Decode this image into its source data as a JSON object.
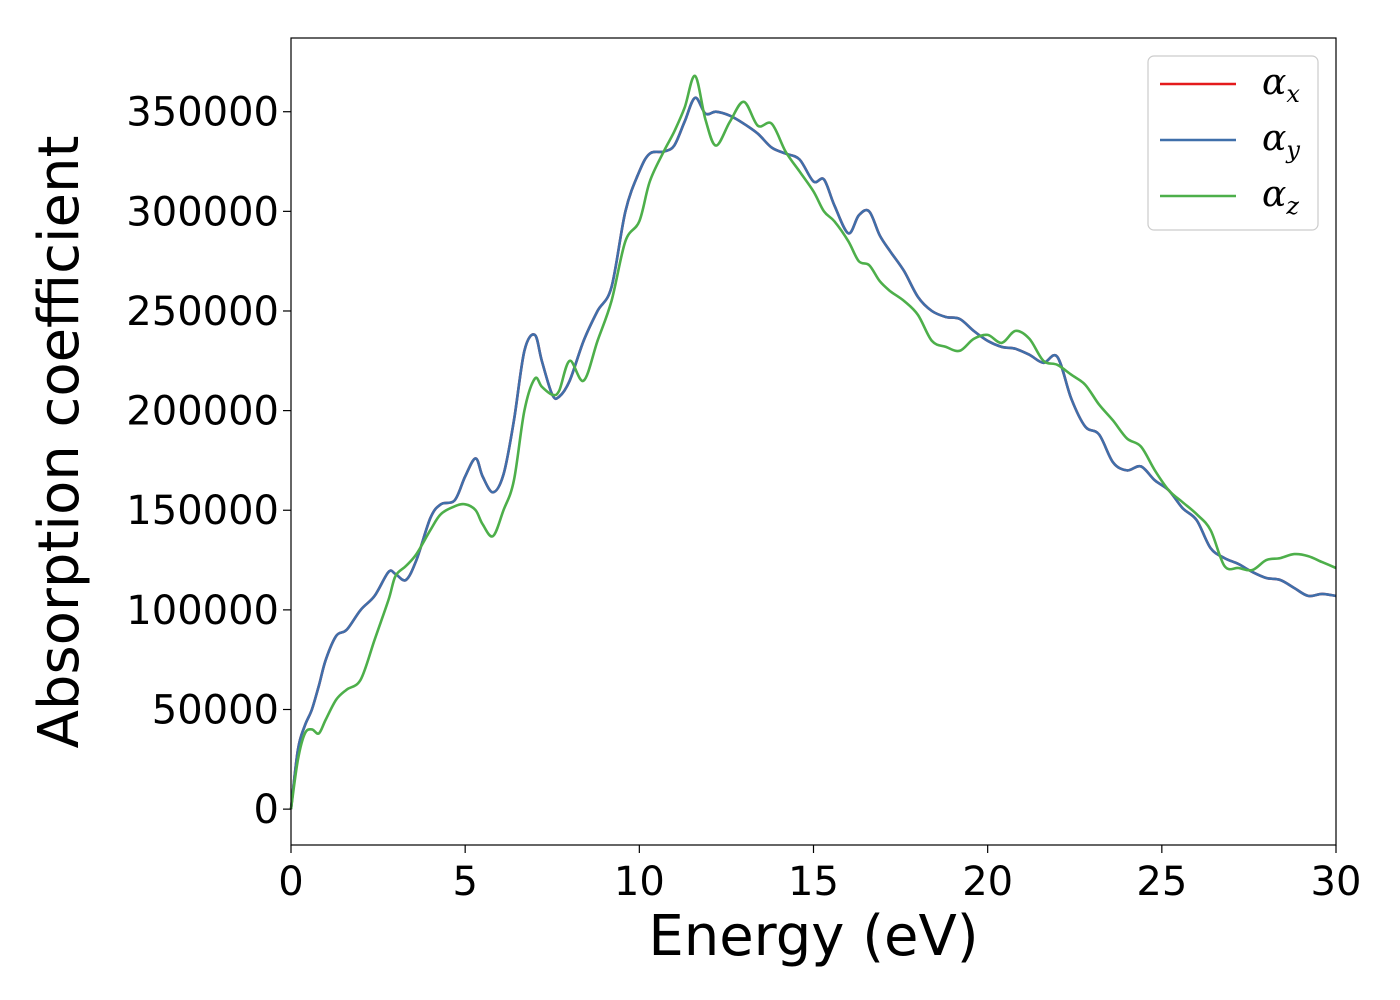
{
  "chart_data": {
    "type": "line",
    "title": "",
    "xlabel": "Energy (eV)",
    "ylabel": "Absorption coefficient",
    "xlim": [
      0,
      30
    ],
    "ylim": [
      -18000,
      387000
    ],
    "xticks": [
      0,
      5,
      10,
      15,
      20,
      25,
      30
    ],
    "yticks": [
      0,
      50000,
      100000,
      150000,
      200000,
      250000,
      300000,
      350000
    ],
    "grid": false,
    "legend_position": "top-right",
    "series": [
      {
        "name": "α",
        "subscript": "x",
        "color": "#e41a1c",
        "x": [
          0,
          0.2,
          0.4,
          0.6,
          0.8,
          1.0,
          1.3,
          1.6,
          2.0,
          2.4,
          2.8,
          3.0,
          3.3,
          3.6,
          4.0,
          4.3,
          4.7,
          5.0,
          5.3,
          5.5,
          5.8,
          6.1,
          6.4,
          6.7,
          7.0,
          7.2,
          7.5,
          7.7,
          8.0,
          8.4,
          8.8,
          9.2,
          9.6,
          10.0,
          10.3,
          10.7,
          11.0,
          11.3,
          11.6,
          11.9,
          12.2,
          12.6,
          13.0,
          13.4,
          13.8,
          14.2,
          14.6,
          15.0,
          15.3,
          15.6,
          16.0,
          16.3,
          16.6,
          16.9,
          17.2,
          17.6,
          18.0,
          18.4,
          18.8,
          19.2,
          19.6,
          20.0,
          20.4,
          20.8,
          21.2,
          21.6,
          22.0,
          22.4,
          22.8,
          23.2,
          23.6,
          24.0,
          24.4,
          24.8,
          25.2,
          25.6,
          26.0,
          26.4,
          26.8,
          27.2,
          27.6,
          28.0,
          28.4,
          28.8,
          29.2,
          29.6,
          30.0
        ],
        "values": [
          0,
          30000,
          42000,
          50000,
          62000,
          75000,
          87000,
          90000,
          100000,
          107000,
          119000,
          118000,
          115000,
          125000,
          146000,
          153000,
          155000,
          167000,
          176000,
          167000,
          159000,
          168000,
          195000,
          230000,
          238000,
          225000,
          208000,
          207000,
          215000,
          235000,
          250000,
          262000,
          300000,
          320000,
          329000,
          330000,
          333000,
          345000,
          357000,
          349000,
          350000,
          348000,
          344000,
          339000,
          332000,
          329000,
          326000,
          315000,
          316000,
          303000,
          289000,
          298000,
          300000,
          288000,
          280000,
          270000,
          257000,
          250000,
          247000,
          246000,
          240000,
          235000,
          232000,
          231000,
          228000,
          224000,
          227000,
          206000,
          192000,
          188000,
          174000,
          170000,
          172000,
          165000,
          160000,
          151000,
          145000,
          131000,
          126000,
          123000,
          119000,
          116000,
          115000,
          111000,
          107000,
          108000,
          107000
        ]
      },
      {
        "name": "α",
        "subscript": "y",
        "color": "#3f6faa",
        "x": [
          0,
          0.2,
          0.4,
          0.6,
          0.8,
          1.0,
          1.3,
          1.6,
          2.0,
          2.4,
          2.8,
          3.0,
          3.3,
          3.6,
          4.0,
          4.3,
          4.7,
          5.0,
          5.3,
          5.5,
          5.8,
          6.1,
          6.4,
          6.7,
          7.0,
          7.2,
          7.5,
          7.7,
          8.0,
          8.4,
          8.8,
          9.2,
          9.6,
          10.0,
          10.3,
          10.7,
          11.0,
          11.3,
          11.6,
          11.9,
          12.2,
          12.6,
          13.0,
          13.4,
          13.8,
          14.2,
          14.6,
          15.0,
          15.3,
          15.6,
          16.0,
          16.3,
          16.6,
          16.9,
          17.2,
          17.6,
          18.0,
          18.4,
          18.8,
          19.2,
          19.6,
          20.0,
          20.4,
          20.8,
          21.2,
          21.6,
          22.0,
          22.4,
          22.8,
          23.2,
          23.6,
          24.0,
          24.4,
          24.8,
          25.2,
          25.6,
          26.0,
          26.4,
          26.8,
          27.2,
          27.6,
          28.0,
          28.4,
          28.8,
          29.2,
          29.6,
          30.0
        ],
        "values": [
          0,
          30000,
          42000,
          50000,
          62000,
          75000,
          87000,
          90000,
          100000,
          107000,
          119000,
          118000,
          115000,
          125000,
          146000,
          153000,
          155000,
          167000,
          176000,
          167000,
          159000,
          168000,
          195000,
          230000,
          238000,
          225000,
          208000,
          207000,
          215000,
          235000,
          250000,
          262000,
          300000,
          320000,
          329000,
          330000,
          333000,
          345000,
          357000,
          349000,
          350000,
          348000,
          344000,
          339000,
          332000,
          329000,
          326000,
          315000,
          316000,
          303000,
          289000,
          298000,
          300000,
          288000,
          280000,
          270000,
          257000,
          250000,
          247000,
          246000,
          240000,
          235000,
          232000,
          231000,
          228000,
          224000,
          227000,
          206000,
          192000,
          188000,
          174000,
          170000,
          172000,
          165000,
          160000,
          151000,
          145000,
          131000,
          126000,
          123000,
          119000,
          116000,
          115000,
          111000,
          107000,
          108000,
          107000
        ]
      },
      {
        "name": "α",
        "subscript": "z",
        "color": "#4daf4a",
        "x": [
          0,
          0.2,
          0.4,
          0.6,
          0.8,
          1.0,
          1.3,
          1.6,
          2.0,
          2.4,
          2.8,
          3.0,
          3.3,
          3.6,
          4.0,
          4.3,
          4.7,
          5.0,
          5.3,
          5.5,
          5.8,
          6.1,
          6.4,
          6.7,
          7.0,
          7.2,
          7.5,
          7.7,
          8.0,
          8.4,
          8.8,
          9.2,
          9.6,
          10.0,
          10.3,
          10.7,
          11.0,
          11.3,
          11.6,
          11.9,
          12.2,
          12.6,
          13.0,
          13.4,
          13.8,
          14.2,
          14.6,
          15.0,
          15.3,
          15.6,
          16.0,
          16.3,
          16.6,
          16.9,
          17.2,
          17.6,
          18.0,
          18.4,
          18.8,
          19.2,
          19.6,
          20.0,
          20.4,
          20.8,
          21.2,
          21.6,
          22.0,
          22.4,
          22.8,
          23.2,
          23.6,
          24.0,
          24.4,
          24.8,
          25.2,
          25.6,
          26.0,
          26.4,
          26.8,
          27.2,
          27.6,
          28.0,
          28.4,
          28.8,
          29.2,
          29.6,
          30.0
        ],
        "values": [
          0,
          25000,
          38000,
          40000,
          38000,
          45000,
          55000,
          60000,
          65000,
          85000,
          105000,
          117000,
          122000,
          128000,
          140000,
          148000,
          152000,
          153000,
          150000,
          143000,
          137000,
          150000,
          165000,
          200000,
          216000,
          212000,
          208000,
          210000,
          225000,
          215000,
          235000,
          255000,
          285000,
          295000,
          315000,
          330000,
          340000,
          352000,
          368000,
          346000,
          333000,
          345000,
          355000,
          343000,
          344000,
          330000,
          320000,
          310000,
          300000,
          295000,
          285000,
          275000,
          273000,
          265000,
          260000,
          255000,
          248000,
          235000,
          232000,
          230000,
          236000,
          238000,
          234000,
          240000,
          236000,
          225000,
          223000,
          218000,
          213000,
          203000,
          195000,
          186000,
          182000,
          170000,
          160000,
          154000,
          148000,
          140000,
          122000,
          121000,
          120000,
          125000,
          126000,
          128000,
          127000,
          124000,
          121000
        ]
      }
    ]
  }
}
